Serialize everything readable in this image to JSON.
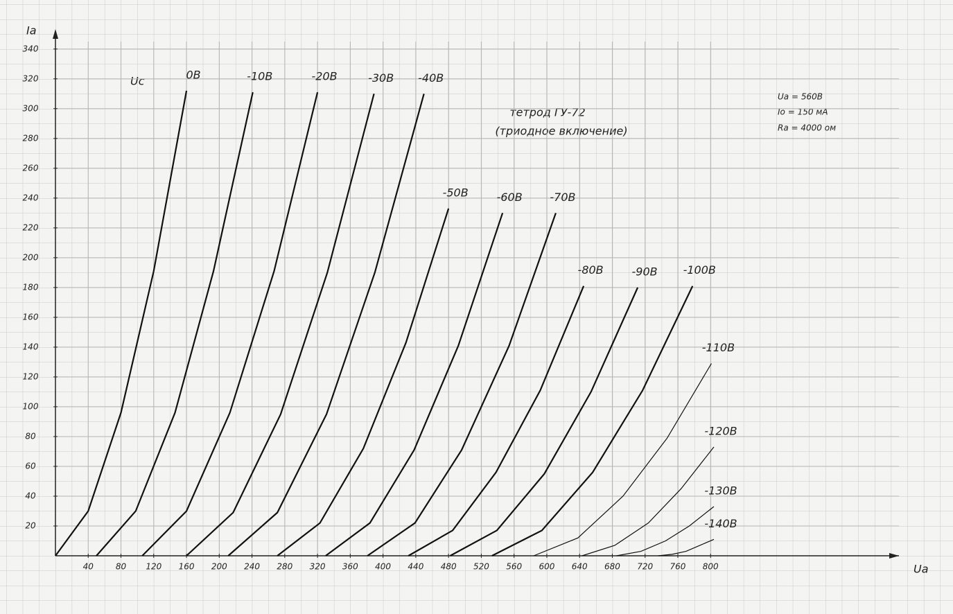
{
  "chart_data": {
    "type": "line",
    "title": "тетрод ГУ-72",
    "subtitle": "(триодное включение)",
    "y_label": "Ia",
    "x_label": "Ua",
    "legend_title": "Uc",
    "annotations": [
      "Ua = 560В",
      "Io = 150 мА",
      "Ra = 4000 ом"
    ],
    "xlim": [
      0,
      1030
    ],
    "ylim": [
      0,
      345
    ],
    "xticks": [
      40,
      80,
      120,
      160,
      200,
      240,
      280,
      320,
      360,
      400,
      440,
      480,
      520,
      560,
      600,
      640,
      680,
      720,
      760,
      800
    ],
    "yticks": [
      20,
      40,
      60,
      80,
      100,
      120,
      140,
      160,
      180,
      200,
      220,
      240,
      260,
      280,
      300,
      320,
      340
    ],
    "grid": true,
    "color": "#111111",
    "series": [
      {
        "name": "0В",
        "x": [
          0,
          40,
          80,
          120,
          160
        ],
        "values": [
          0,
          30,
          96,
          191,
          312
        ]
      },
      {
        "name": "-10В",
        "x": [
          50,
          98,
          146,
          193,
          241
        ],
        "values": [
          0,
          30,
          96,
          191,
          311
        ]
      },
      {
        "name": "-20В",
        "x": [
          106,
          160,
          213,
          267,
          320
        ],
        "values": [
          0,
          30,
          96,
          191,
          311
        ]
      },
      {
        "name": "-30В",
        "x": [
          160,
          217,
          275,
          332,
          389
        ],
        "values": [
          0,
          29,
          95,
          190,
          310
        ]
      },
      {
        "name": "-40В",
        "x": [
          211,
          271,
          331,
          390,
          450
        ],
        "values": [
          0,
          29,
          95,
          190,
          310
        ]
      },
      {
        "name": "-50В",
        "x": [
          271,
          323,
          376,
          428,
          480
        ],
        "values": [
          0,
          22,
          72,
          143,
          233
        ]
      },
      {
        "name": "-60В",
        "x": [
          330,
          384,
          438,
          492,
          546
        ],
        "values": [
          0,
          22,
          71,
          141,
          230
        ]
      },
      {
        "name": "-70В",
        "x": [
          381,
          439,
          496,
          554,
          611
        ],
        "values": [
          0,
          22,
          71,
          141,
          230
        ]
      },
      {
        "name": "-80В",
        "x": [
          431,
          485,
          538,
          592,
          645
        ],
        "values": [
          0,
          17,
          56,
          111,
          181
        ]
      },
      {
        "name": "-90В",
        "x": [
          482,
          539,
          597,
          654,
          711
        ],
        "values": [
          0,
          17,
          55,
          110,
          180
        ]
      },
      {
        "name": "-100В",
        "x": [
          533,
          594,
          656,
          717,
          778
        ],
        "values": [
          0,
          17,
          56,
          111,
          181
        ]
      },
      {
        "name": "-110В",
        "x": [
          584,
          638,
          693,
          747,
          801
        ],
        "values": [
          0,
          12,
          40,
          79,
          129
        ]
      },
      {
        "name": "-120В",
        "x": [
          643,
          683,
          724,
          764,
          804
        ],
        "values": [
          0,
          7,
          22,
          45,
          73
        ]
      },
      {
        "name": "-130В",
        "x": [
          685,
          715,
          745,
          774,
          804
        ],
        "values": [
          0,
          3,
          10,
          20,
          33
        ]
      },
      {
        "name": "-140В",
        "x": [
          736,
          753,
          770,
          787,
          804
        ],
        "values": [
          0,
          1,
          3,
          7,
          11
        ]
      }
    ]
  }
}
